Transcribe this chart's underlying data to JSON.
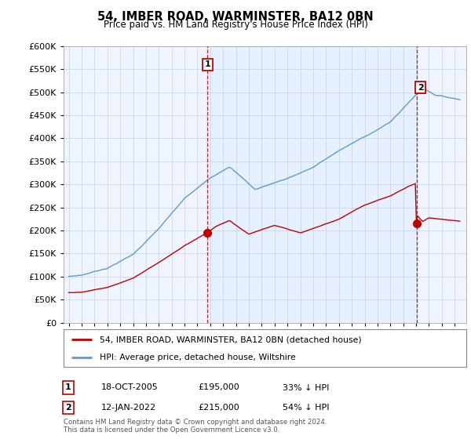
{
  "title": "54, IMBER ROAD, WARMINSTER, BA12 0BN",
  "subtitle": "Price paid vs. HM Land Registry's House Price Index (HPI)",
  "hpi_label": "HPI: Average price, detached house, Wiltshire",
  "price_label": "54, IMBER ROAD, WARMINSTER, BA12 0BN (detached house)",
  "hpi_color": "#5b9bd5",
  "price_color": "#c00000",
  "vline_color": "#c00000",
  "shade_color": "#ddeeff",
  "transaction1": {
    "date": "18-OCT-2005",
    "price": 195000,
    "label": "33% ↓ HPI",
    "num": "1"
  },
  "transaction2": {
    "date": "12-JAN-2022",
    "price": 215000,
    "label": "54% ↓ HPI",
    "num": "2"
  },
  "ylim": [
    0,
    600000
  ],
  "ytick_step": 50000,
  "background_color": "#ffffff",
  "plot_bg_color": "#f0f4ff",
  "grid_color": "#c8d8e8",
  "footer": "Contains HM Land Registry data © Crown copyright and database right 2024.\nThis data is licensed under the Open Government Licence v3.0.",
  "tx1_x": 2005.79,
  "tx2_x": 2022.04,
  "xmin": 1995,
  "xmax": 2025
}
